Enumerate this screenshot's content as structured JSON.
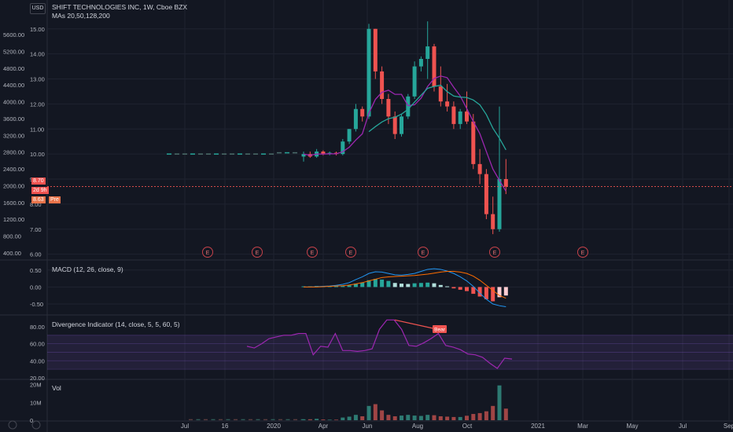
{
  "header": {
    "currency": "USD",
    "title": "SHIFT TECHNOLOGIES INC, 1W, Cboe BZX",
    "ma_label": "MAs 20,50,128,200"
  },
  "chart_data": {
    "type": "candlestick",
    "title": "SHIFT TECHNOLOGIES INC, 1W, Cboe BZX",
    "x_ticks": [
      "Jul",
      "16",
      "2020",
      "Apr",
      "Jun",
      "Aug",
      "Oct",
      "2021",
      "Mar",
      "May",
      "Jul",
      "Sep"
    ],
    "price_scale_right": [
      "15.00",
      "14.00",
      "13.00",
      "12.00",
      "11.00",
      "10.00",
      "9.00",
      "8.00",
      "7.00",
      "6.00"
    ],
    "price_scale_left": [
      "5600.00",
      "5200.00",
      "4800.00",
      "4400.00",
      "4000.00",
      "3600.00",
      "3200.00",
      "2800.00",
      "2400.00",
      "2000.00",
      "1600.00",
      "1200.00",
      "800.00",
      "400.00"
    ],
    "ylim": [
      5.8,
      15.4
    ],
    "current_price": "8.70",
    "countdown": "2d 9h",
    "pre_price": "8.63",
    "pre_label": "Pre",
    "earnings_marker": "E",
    "earnings_count": 7,
    "candles": [
      [
        9.9,
        10.1,
        9.7,
        10.0
      ],
      [
        10.0,
        10.1,
        9.85,
        9.9
      ],
      [
        9.9,
        10.2,
        9.85,
        10.1
      ],
      [
        10.1,
        10.15,
        9.95,
        10.0
      ],
      [
        10.0,
        10.1,
        9.95,
        10.05
      ],
      [
        10.05,
        10.1,
        9.95,
        10.0
      ],
      [
        10.0,
        10.6,
        9.95,
        10.5
      ],
      [
        10.5,
        11.0,
        10.4,
        11.0
      ],
      [
        11.0,
        12.0,
        10.9,
        11.8
      ],
      [
        11.8,
        11.9,
        11.3,
        11.5
      ],
      [
        11.5,
        15.2,
        11.4,
        15.0
      ],
      [
        15.0,
        15.0,
        13.0,
        13.3
      ],
      [
        13.3,
        13.5,
        12.0,
        12.2
      ],
      [
        12.2,
        12.4,
        11.2,
        11.5
      ],
      [
        11.5,
        11.7,
        10.6,
        10.8
      ],
      [
        10.8,
        11.6,
        10.7,
        11.5
      ],
      [
        11.5,
        12.4,
        11.4,
        12.3
      ],
      [
        12.3,
        13.7,
        12.2,
        13.5
      ],
      [
        13.5,
        13.9,
        13.3,
        13.8
      ],
      [
        13.8,
        15.3,
        13.0,
        14.3
      ],
      [
        14.3,
        14.4,
        12.5,
        12.7
      ],
      [
        12.7,
        13.5,
        11.9,
        12.1
      ],
      [
        12.1,
        12.8,
        11.7,
        11.9
      ],
      [
        11.9,
        12.1,
        11.0,
        11.2
      ],
      [
        11.2,
        11.8,
        11.0,
        11.7
      ],
      [
        11.7,
        12.5,
        11.2,
        11.3
      ],
      [
        11.3,
        11.6,
        9.4,
        9.6
      ],
      [
        9.6,
        10.2,
        8.8,
        9.2
      ],
      [
        9.2,
        9.4,
        7.4,
        7.6
      ],
      [
        7.6,
        8.3,
        6.8,
        7.0
      ],
      [
        7.0,
        11.9,
        6.9,
        9.0
      ],
      [
        9.0,
        9.8,
        8.4,
        8.7
      ]
    ],
    "series": [
      {
        "name": "MA 20",
        "color": "#9c27b0"
      },
      {
        "name": "MA 50",
        "color": "#26a69a"
      }
    ],
    "macd": {
      "label": "MACD (12, 26, close, 9)",
      "ticks": [
        "0.50",
        "0.00",
        "-0.50"
      ],
      "ylim": [
        -0.8,
        0.75
      ]
    },
    "divergence": {
      "label": "Divergence Indicator (14, close, 5, 5, 60, 5)",
      "ticks": [
        "80.00",
        "60.00",
        "40.00",
        "20.00"
      ],
      "ylim": [
        19,
        92
      ],
      "marker": "Bear",
      "values": [
        57,
        55,
        60,
        66,
        68,
        70,
        70,
        72,
        72,
        47,
        57,
        56,
        72,
        52,
        52,
        51,
        52,
        54,
        77,
        88,
        88,
        77,
        58,
        57,
        61,
        66,
        72,
        58,
        56,
        53,
        48,
        47,
        44,
        37,
        31,
        43,
        42
      ]
    },
    "volume": {
      "label": "Vol",
      "ticks": [
        "20M",
        "10M",
        "0"
      ],
      "ylim": [
        0,
        22
      ]
    }
  }
}
